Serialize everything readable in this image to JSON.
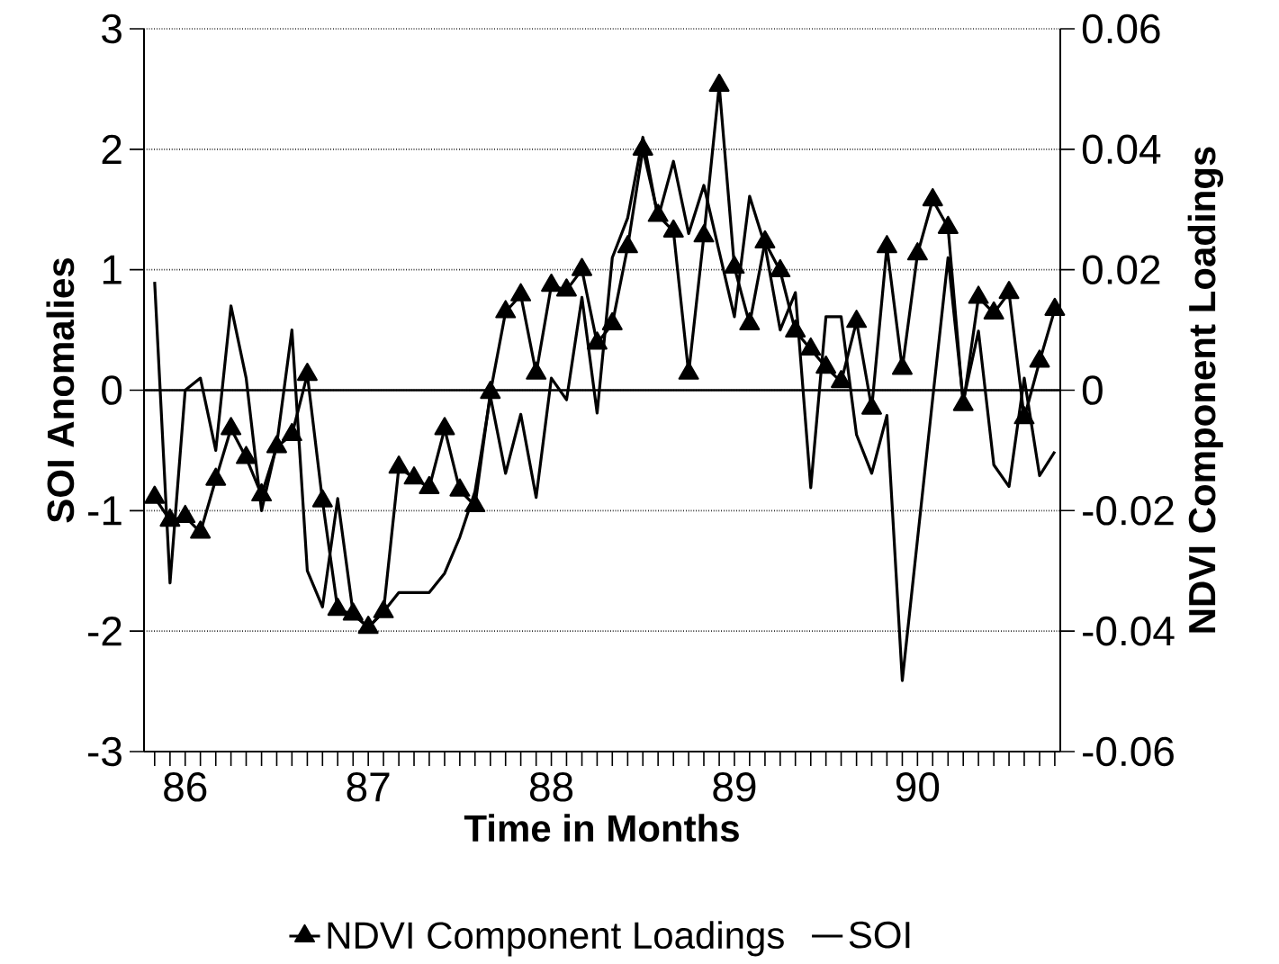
{
  "chart_data": {
    "type": "line",
    "xlabel": "Time in Months",
    "ylabel": "SOI Anomalies",
    "y2label": "NDVI Component Loadings",
    "x": [
      85.833,
      85.917,
      86.0,
      86.083,
      86.167,
      86.25,
      86.333,
      86.417,
      86.5,
      86.583,
      86.667,
      86.75,
      86.833,
      86.917,
      87.0,
      87.083,
      87.167,
      87.25,
      87.333,
      87.417,
      87.5,
      87.583,
      87.667,
      87.75,
      87.833,
      87.917,
      88.0,
      88.083,
      88.167,
      88.25,
      88.333,
      88.417,
      88.5,
      88.583,
      88.667,
      88.75,
      88.833,
      88.917,
      89.0,
      89.083,
      89.167,
      89.25,
      89.333,
      89.417,
      89.5,
      89.583,
      89.667,
      89.75,
      89.833,
      89.917,
      90.0,
      90.083,
      90.167,
      90.25,
      90.333,
      90.417,
      90.5,
      90.583,
      90.667,
      90.75
    ],
    "xlim": [
      85.775,
      90.78
    ],
    "xticks": [
      86,
      87,
      88,
      89,
      90,
      {
        "value": 85.833,
        "label": null
      },
      {
        "value": 85.917,
        "label": null
      },
      {
        "value": 86.083,
        "label": null
      },
      {
        "value": 86.167,
        "label": null
      },
      {
        "value": 86.25,
        "label": null
      },
      {
        "value": 86.333,
        "label": null
      },
      {
        "value": 86.417,
        "label": null
      },
      {
        "value": 86.5,
        "label": null
      },
      {
        "value": 86.583,
        "label": null
      },
      {
        "value": 86.667,
        "label": null
      },
      {
        "value": 86.75,
        "label": null
      },
      {
        "value": 86.833,
        "label": null
      },
      {
        "value": 86.917,
        "label": null
      },
      {
        "value": 87.083,
        "label": null
      },
      {
        "value": 87.167,
        "label": null
      },
      {
        "value": 87.25,
        "label": null
      },
      {
        "value": 87.333,
        "label": null
      },
      {
        "value": 87.417,
        "label": null
      },
      {
        "value": 87.5,
        "label": null
      },
      {
        "value": 87.583,
        "label": null
      },
      {
        "value": 87.667,
        "label": null
      },
      {
        "value": 87.75,
        "label": null
      },
      {
        "value": 87.833,
        "label": null
      },
      {
        "value": 87.917,
        "label": null
      },
      {
        "value": 88.083,
        "label": null
      },
      {
        "value": 88.167,
        "label": null
      },
      {
        "value": 88.25,
        "label": null
      },
      {
        "value": 88.333,
        "label": null
      },
      {
        "value": 88.417,
        "label": null
      },
      {
        "value": 88.5,
        "label": null
      },
      {
        "value": 88.583,
        "label": null
      },
      {
        "value": 88.667,
        "label": null
      },
      {
        "value": 88.75,
        "label": null
      },
      {
        "value": 88.833,
        "label": null
      },
      {
        "value": 88.917,
        "label": null
      },
      {
        "value": 89.083,
        "label": null
      },
      {
        "value": 89.167,
        "label": null
      },
      {
        "value": 89.25,
        "label": null
      },
      {
        "value": 89.333,
        "label": null
      },
      {
        "value": 89.417,
        "label": null
      },
      {
        "value": 89.5,
        "label": null
      },
      {
        "value": 89.583,
        "label": null
      },
      {
        "value": 89.667,
        "label": null
      },
      {
        "value": 89.75,
        "label": null
      },
      {
        "value": 89.833,
        "label": null
      },
      {
        "value": 89.917,
        "label": null
      },
      {
        "value": 90.083,
        "label": null
      },
      {
        "value": 90.167,
        "label": null
      },
      {
        "value": 90.25,
        "label": null
      },
      {
        "value": 90.333,
        "label": null
      },
      {
        "value": 90.417,
        "label": null
      },
      {
        "value": 90.5,
        "label": null
      },
      {
        "value": 90.583,
        "label": null
      },
      {
        "value": 90.667,
        "label": null
      },
      {
        "value": 90.75,
        "label": null
      }
    ],
    "ylim": [
      -3,
      3
    ],
    "yticks": [
      -3,
      -2,
      -1,
      0,
      1,
      2,
      3
    ],
    "y2lim": [
      -0.06,
      0.06
    ],
    "y2ticks": [
      -0.06,
      -0.04,
      -0.02,
      0,
      0.02,
      0.04,
      0.06
    ],
    "grid": "y",
    "legend": "bottom",
    "ref_lines": [
      {
        "axis": "y",
        "value": 0
      }
    ],
    "series": [
      {
        "name": "NDVI Component Loadings",
        "color": "#000000",
        "axis": "y2",
        "marker": "triangle",
        "values": [
          -0.0178,
          -0.0216,
          -0.021,
          -0.0236,
          -0.0148,
          -0.0064,
          -0.0112,
          -0.0174,
          -0.0094,
          -0.0074,
          0.0026,
          -0.0184,
          -0.0364,
          -0.0372,
          -0.0394,
          -0.0368,
          -0.0128,
          -0.0146,
          -0.0162,
          -0.0064,
          -0.0166,
          -0.0192,
          -0.0004,
          0.013,
          0.0158,
          0.0028,
          0.0174,
          0.0166,
          0.02,
          0.0078,
          0.011,
          0.0238,
          0.04,
          0.029,
          0.0264,
          0.0028,
          0.0256,
          0.0506,
          0.0204,
          0.011,
          0.0246,
          0.0198,
          0.0098,
          0.0068,
          0.0038,
          0.0014,
          0.0114,
          -0.003,
          0.0238,
          0.0036,
          0.0226,
          0.0316,
          0.027,
          -0.0024,
          0.0154,
          0.0128,
          0.0162,
          -0.0046,
          0.0048,
          0.0134
        ]
      },
      {
        "name": "SOI",
        "color": "#000000",
        "axis": "y",
        "marker": "none",
        "values": [
          0.9,
          -1.6,
          0.0,
          0.1,
          -0.5,
          0.7,
          0.1,
          -1.0,
          -0.45,
          0.5,
          -1.5,
          -1.8,
          -0.9,
          -1.85,
          -1.97,
          -1.84,
          -1.68,
          -1.68,
          -1.68,
          -1.52,
          -1.22,
          -0.84,
          -0.05,
          -0.69,
          -0.2,
          -0.89,
          0.1,
          -0.08,
          0.77,
          -0.19,
          1.1,
          1.43,
          2.1,
          1.43,
          1.9,
          1.3,
          1.7,
          1.15,
          0.61,
          1.61,
          1.2,
          0.5,
          0.81,
          -0.81,
          0.61,
          0.61,
          -0.37,
          -0.69,
          -0.21,
          -2.41,
          -1.24,
          -0.07,
          1.1,
          -0.09,
          0.49,
          -0.62,
          -0.8,
          0.1,
          -0.71,
          -0.51
        ]
      }
    ]
  }
}
